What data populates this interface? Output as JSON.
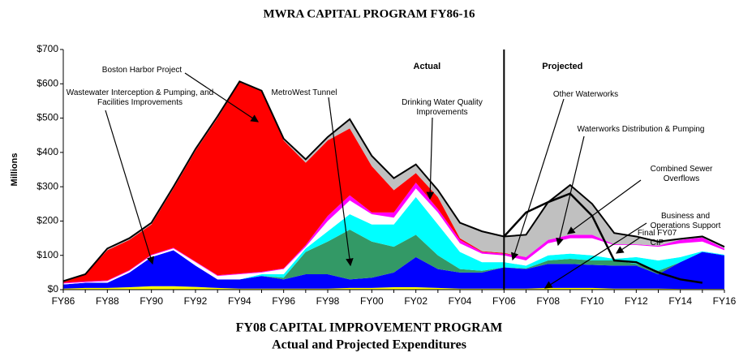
{
  "chart_data": {
    "type": "area",
    "stacked": true,
    "title": "MWRA CAPITAL PROGRAM FY86-16",
    "ylabel": "Millions",
    "xlabel_lines": [
      "FY08 CAPITAL IMPROVEMENT PROGRAM",
      "Actual and Projected Expenditures"
    ],
    "period_labels": [
      "Actual",
      "Projected"
    ],
    "period_split": "FY06",
    "categories": [
      "FY86",
      null,
      "FY88",
      null,
      "FY90",
      null,
      "FY92",
      null,
      "FY94",
      null,
      "FY96",
      null,
      "FY98",
      null,
      "FY00",
      null,
      "FY02",
      null,
      "FY04",
      null,
      "FY06",
      null,
      "FY08",
      null,
      "FY10",
      null,
      "FY12",
      null,
      "FY14",
      null,
      "FY16"
    ],
    "ylim": [
      0,
      700
    ],
    "yticks": [
      {
        "value": 0,
        "label": "$0"
      },
      {
        "value": 100,
        "label": "$100"
      },
      {
        "value": 200,
        "label": "$200"
      },
      {
        "value": 300,
        "label": "$300"
      },
      {
        "value": 400,
        "label": "$400"
      },
      {
        "value": 500,
        "label": "$500"
      },
      {
        "value": 600,
        "label": "$600"
      },
      {
        "value": 700,
        "label": "$700"
      }
    ],
    "series": [
      {
        "name": "Business and Operations Support",
        "style": "area",
        "color": "#ffff00",
        "values": [
          3,
          5,
          5,
          7,
          10,
          10,
          8,
          5,
          3,
          3,
          3,
          3,
          3,
          5,
          5,
          7,
          7,
          5,
          3,
          3,
          3,
          3,
          5,
          5,
          5,
          3,
          3,
          3,
          2,
          2,
          2
        ]
      },
      {
        "name": "Wastewater Interception & Pumping, and Facilities Improvements",
        "style": "area",
        "color": "#0000ff",
        "values": [
          12,
          15,
          15,
          43,
          85,
          105,
          62,
          25,
          27,
          37,
          27,
          42,
          42,
          25,
          30,
          43,
          88,
          55,
          47,
          47,
          62,
          57,
          70,
          70,
          67,
          67,
          67,
          42,
          78,
          108,
          98
        ]
      },
      {
        "name": "MetroWest Tunnel",
        "style": "area",
        "color": "#339966",
        "values": [
          0,
          0,
          0,
          0,
          0,
          0,
          0,
          0,
          0,
          0,
          5,
          65,
          95,
          145,
          105,
          75,
          65,
          40,
          10,
          5,
          0,
          2,
          10,
          15,
          13,
          15,
          5,
          10,
          0,
          0,
          0
        ]
      },
      {
        "name": "Drinking Water Quality Improvements",
        "style": "area",
        "color": "#00ffff",
        "values": [
          0,
          0,
          0,
          0,
          0,
          0,
          0,
          0,
          0,
          5,
          10,
          10,
          30,
          45,
          50,
          65,
          110,
          90,
          50,
          25,
          15,
          8,
          15,
          15,
          15,
          5,
          20,
          30,
          15,
          2,
          2
        ]
      },
      {
        "name": "Waterworks Distribution & Pumping",
        "style": "area",
        "color": "#ffffff",
        "values": [
          3,
          2,
          5,
          5,
          5,
          5,
          10,
          10,
          15,
          5,
          15,
          5,
          30,
          40,
          30,
          20,
          25,
          35,
          25,
          25,
          20,
          15,
          35,
          45,
          50,
          40,
          35,
          40,
          40,
          28,
          13
        ]
      },
      {
        "name": "Other Waterworks",
        "style": "area",
        "color": "#ff00ff",
        "values": [
          2,
          2,
          2,
          2,
          2,
          2,
          2,
          2,
          2,
          2,
          2,
          5,
          15,
          15,
          5,
          15,
          17,
          10,
          10,
          5,
          5,
          10,
          10,
          10,
          10,
          2,
          2,
          3,
          10,
          12,
          5
        ]
      },
      {
        "name": "Boston Harbor Project",
        "style": "area",
        "color": "#ff0000",
        "values": [
          5,
          21,
          88,
          88,
          88,
          173,
          323,
          458,
          558,
          526,
          373,
          240,
          220,
          195,
          135,
          65,
          28,
          35,
          5,
          2,
          2,
          0,
          0,
          0,
          0,
          0,
          0,
          0,
          0,
          0,
          0
        ]
      },
      {
        "name": "Combined Sewer Overflows",
        "style": "area",
        "color": "#c0c0c0",
        "values": [
          0,
          0,
          5,
          5,
          5,
          5,
          5,
          5,
          2,
          2,
          5,
          10,
          10,
          27,
          30,
          35,
          25,
          20,
          45,
          58,
          48,
          65,
          110,
          145,
          90,
          33,
          23,
          12,
          3,
          3,
          5
        ]
      },
      {
        "name": "Final FY07 CIP",
        "style": "line",
        "color": "#000000",
        "values": [
          null,
          null,
          null,
          null,
          null,
          null,
          null,
          null,
          null,
          null,
          null,
          null,
          null,
          null,
          null,
          null,
          null,
          null,
          null,
          null,
          155,
          225,
          255,
          280,
          215,
          85,
          80,
          50,
          30,
          20,
          null
        ]
      }
    ]
  }
}
